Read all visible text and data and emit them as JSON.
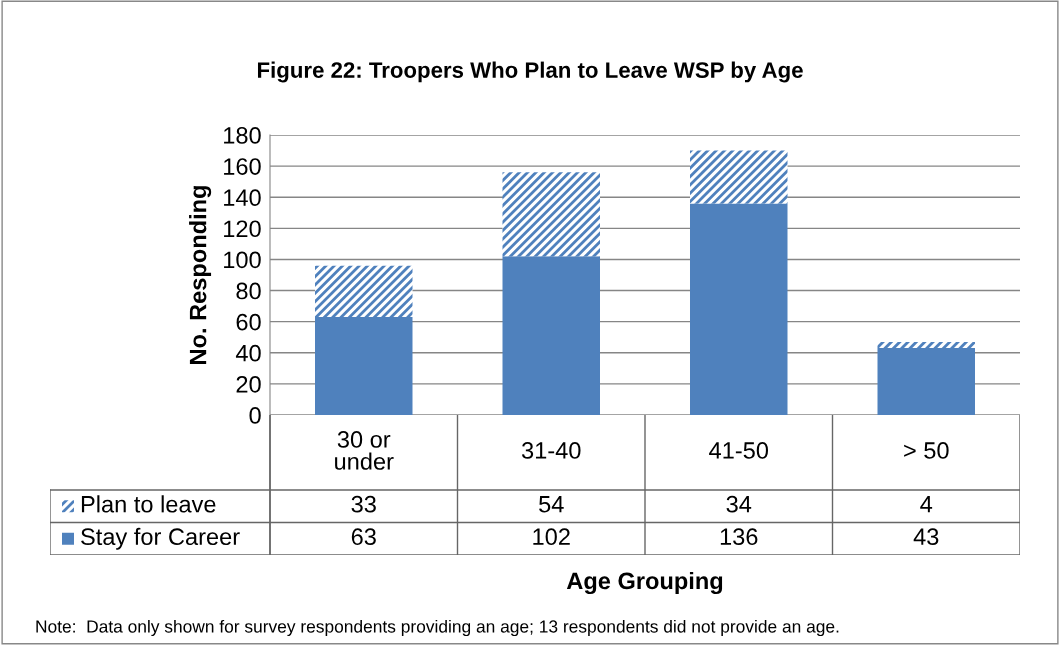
{
  "chart_data": {
    "type": "bar",
    "title": "Figure 22: Troopers Who Plan to Leave WSP by Age",
    "categories": [
      "30 or\nunder",
      "31-40",
      "41-50",
      "> 50"
    ],
    "series": [
      {
        "name": "Stay for Career",
        "color": "#4f81bd",
        "values": [
          63,
          102,
          136,
          43
        ]
      },
      {
        "name": "Plan to leave",
        "color": "#4f81bd",
        "values": [
          33,
          54,
          34,
          4
        ]
      }
    ],
    "stacked": true,
    "ylim": [
      0,
      180
    ],
    "yticks": [
      0,
      20,
      40,
      60,
      80,
      100,
      120,
      140,
      160,
      180
    ],
    "ylabel": "No. Responding",
    "xlabel": "Age Grouping",
    "grid": "y",
    "legend": "bottom",
    "data_labels": true,
    "annotations": [
      "Note:  Data only shown for survey respondents providing an age; 13 respondents did not provide an age."
    ]
  }
}
